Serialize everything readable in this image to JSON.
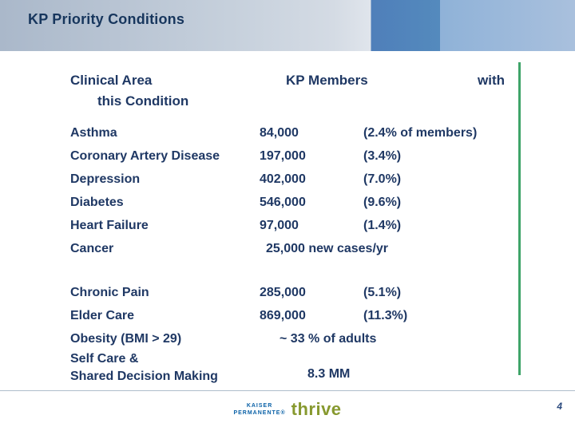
{
  "slide": {
    "title": "KP Priority Conditions",
    "page_number": "4"
  },
  "table": {
    "header": {
      "col1_line1": "Clinical Area",
      "col1_line2": "this Condition",
      "col2": "KP Members",
      "col3": "with"
    },
    "group1": [
      {
        "label": "Asthma",
        "value": "84,000",
        "note": "(2.4% of members)"
      },
      {
        "label": "Coronary Artery Disease",
        "value": "197,000",
        "note": "(3.4%)"
      },
      {
        "label": "Depression",
        "value": "402,000",
        "note": "(7.0%)"
      },
      {
        "label": "Diabetes",
        "value": "546,000",
        "note": "(9.6%)"
      },
      {
        "label": "Heart Failure",
        "value": "97,000",
        "note": "(1.4%)"
      },
      {
        "label": "Cancer",
        "value": "25,000 new cases/yr",
        "note": ""
      }
    ],
    "group2": [
      {
        "label": "Chronic Pain",
        "value": "285,000",
        "note": "(5.1%)"
      },
      {
        "label": "Elder Care",
        "value": "869,000",
        "note": "(11.3%)"
      },
      {
        "label": "Obesity (BMI > 29)",
        "value": "~ 33 % of adults",
        "note": ""
      },
      {
        "label": "Self Care &\nShared Decision Making",
        "value": "8.3 MM",
        "note": ""
      }
    ]
  },
  "footer": {
    "logo_line1": "KAISER",
    "logo_line2": "PERMANENTE®",
    "logo_thrive": "thrive"
  },
  "colors": {
    "navy_text": "#1F3864",
    "band_blue": "#4F7FBA",
    "accent_green": "#3FA469",
    "kaiser_blue": "#0A61A7",
    "thrive_green": "#87992F"
  }
}
